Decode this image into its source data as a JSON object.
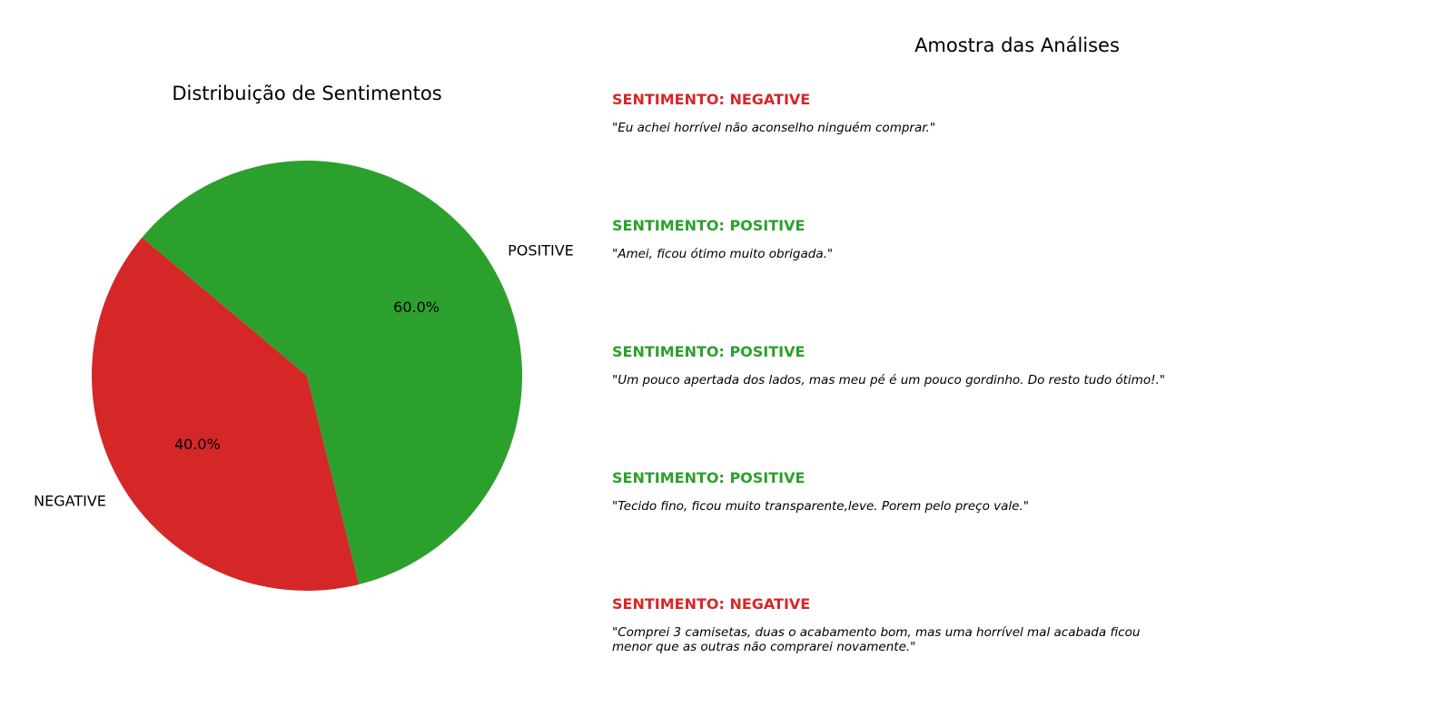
{
  "chart_data": {
    "type": "pie",
    "title": "Distribuição de Sentimentos",
    "slices": [
      {
        "label": "NEGATIVE",
        "value": 40.0,
        "pct_label": "40.0%",
        "color": "#d62728"
      },
      {
        "label": "POSITIVE",
        "value": 60.0,
        "pct_label": "60.0%",
        "color": "#2ca02c"
      }
    ]
  },
  "samples": {
    "title": "Amostra das Análises",
    "items": [
      {
        "sentiment": "SENTIMENTO: NEGATIVE",
        "color": "#d62728",
        "text": "\"Eu achei horrível não aconselho ninguém comprar.\""
      },
      {
        "sentiment": "SENTIMENTO: POSITIVE",
        "color": "#2ca02c",
        "text": "\"Amei, ficou ótimo muito obrigada.\""
      },
      {
        "sentiment": "SENTIMENTO: POSITIVE",
        "color": "#2ca02c",
        "text": "\"Um pouco apertada dos lados, mas meu pé é um pouco gordinho. Do resto tudo ótimo!.\""
      },
      {
        "sentiment": "SENTIMENTO: POSITIVE",
        "color": "#2ca02c",
        "text": "\"Tecido fino, ficou muito transparente,leve. Porem pelo preço vale.\""
      },
      {
        "sentiment": "SENTIMENTO: NEGATIVE",
        "color": "#d62728",
        "text": "\"Comprei 3 camisetas, duas o acabamento bom, mas uma horrível mal acabada ficou menor que as outras não comprarei novamente.\""
      }
    ]
  }
}
